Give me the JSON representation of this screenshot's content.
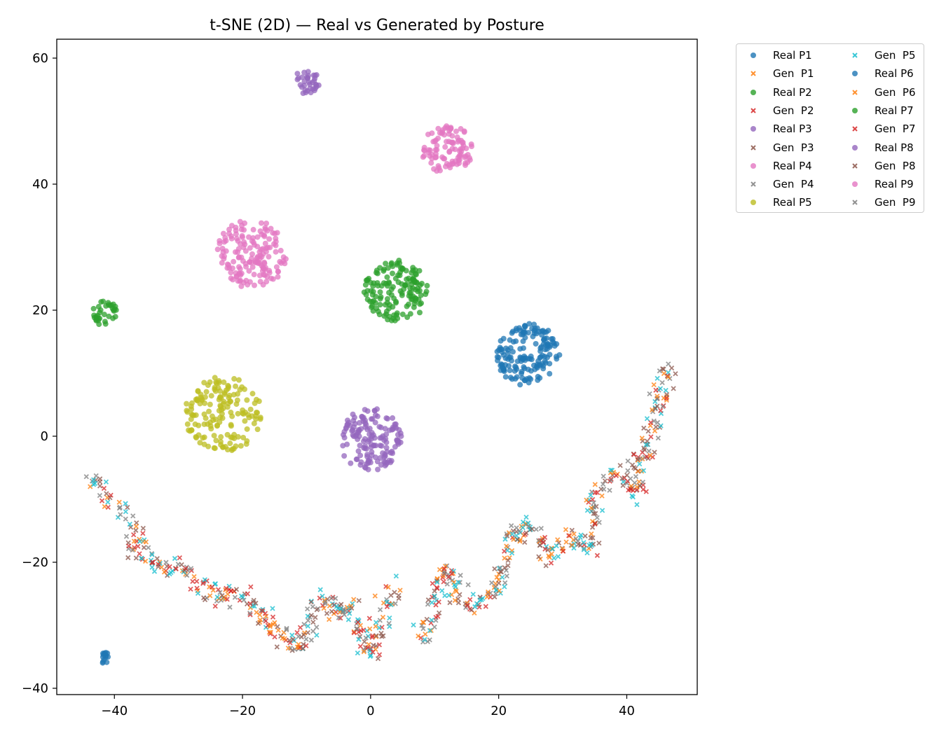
{
  "chart_data": {
    "type": "scatter",
    "title": "t-SNE (2D) — Real vs Generated by Posture",
    "xlabel": "",
    "ylabel": "",
    "xlim": [
      -49,
      51
    ],
    "ylim": [
      -41,
      63
    ],
    "x_ticks": [
      -40,
      -20,
      0,
      20,
      40
    ],
    "y_ticks": [
      -40,
      -20,
      0,
      20,
      40,
      60
    ],
    "x_tick_labels": [
      "−40",
      "−20",
      "0",
      "20",
      "40"
    ],
    "y_tick_labels": [
      "−40",
      "−20",
      "0",
      "20",
      "40",
      "60"
    ],
    "grid": false,
    "legend_position": "outside-top-right",
    "legend_columns": 2,
    "legend": [
      {
        "label": "Real P1",
        "marker": "circle",
        "color": "#1f77b4"
      },
      {
        "label": "Gen  P1",
        "marker": "x",
        "color": "#ff7f0e"
      },
      {
        "label": "Real P2",
        "marker": "circle",
        "color": "#2ca02c"
      },
      {
        "label": "Gen  P2",
        "marker": "x",
        "color": "#d62728"
      },
      {
        "label": "Real P3",
        "marker": "circle",
        "color": "#9467bd"
      },
      {
        "label": "Gen  P3",
        "marker": "x",
        "color": "#8c564b"
      },
      {
        "label": "Real P4",
        "marker": "circle",
        "color": "#e377c2"
      },
      {
        "label": "Gen  P4",
        "marker": "x",
        "color": "#7f7f7f"
      },
      {
        "label": "Real P5",
        "marker": "circle",
        "color": "#bcbd22"
      },
      {
        "label": "Gen  P5",
        "marker": "x",
        "color": "#17becf"
      },
      {
        "label": "Real P6",
        "marker": "circle",
        "color": "#1f77b4"
      },
      {
        "label": "Gen  P6",
        "marker": "x",
        "color": "#ff7f0e"
      },
      {
        "label": "Real P7",
        "marker": "circle",
        "color": "#2ca02c"
      },
      {
        "label": "Gen  P7",
        "marker": "x",
        "color": "#d62728"
      },
      {
        "label": "Real P8",
        "marker": "circle",
        "color": "#9467bd"
      },
      {
        "label": "Gen  P8",
        "marker": "x",
        "color": "#8c564b"
      },
      {
        "label": "Real P9",
        "marker": "circle",
        "color": "#e377c2"
      },
      {
        "label": "Gen  P9",
        "marker": "x",
        "color": "#7f7f7f"
      }
    ],
    "real_clusters": [
      {
        "series": "Real P1",
        "color": "#1f77b4",
        "center": [
          24.5,
          13
        ],
        "radius": 5,
        "count": 160
      },
      {
        "series": "Real P6",
        "color": "#1f77b4",
        "center": [
          -41.5,
          -35.2
        ],
        "radius": 0.9,
        "count": 14
      },
      {
        "series": "Real P2",
        "color": "#2ca02c",
        "center": [
          4,
          23
        ],
        "radius": 5,
        "count": 150
      },
      {
        "series": "Real P7",
        "color": "#2ca02c",
        "center": [
          -41.5,
          19.5
        ],
        "radius": 2,
        "count": 35
      },
      {
        "series": "Real P3",
        "color": "#9467bd",
        "center": [
          0,
          -0.5
        ],
        "radius": 5,
        "count": 150
      },
      {
        "series": "Real P8",
        "color": "#9467bd",
        "center": [
          -10,
          56.3
        ],
        "radius": 2,
        "count": 35
      },
      {
        "series": "Real P4",
        "color": "#e377c2",
        "center": [
          -18.5,
          29
        ],
        "radius": 5.5,
        "count": 160
      },
      {
        "series": "Real P9",
        "color": "#e377c2",
        "center": [
          12,
          45.5
        ],
        "radius": 4,
        "count": 100
      },
      {
        "series": "Real P5",
        "color": "#bcbd22",
        "center": [
          -23,
          3.5
        ],
        "radius": 6,
        "count": 160
      }
    ],
    "generated_path": [
      [
        -44,
        -6
      ],
      [
        -42,
        -8
      ],
      [
        -40,
        -11
      ],
      [
        -38.5,
        -12
      ],
      [
        -37,
        -14
      ],
      [
        -36,
        -16
      ],
      [
        -37,
        -18
      ],
      [
        -35,
        -19
      ],
      [
        -33,
        -20
      ],
      [
        -31.5,
        -22
      ],
      [
        -30,
        -20
      ],
      [
        -28,
        -22
      ],
      [
        -26,
        -24
      ],
      [
        -24,
        -26
      ],
      [
        -22,
        -24
      ],
      [
        -20,
        -26
      ],
      [
        -18,
        -27
      ],
      [
        -16,
        -29
      ],
      [
        -15,
        -31
      ],
      [
        -13,
        -33
      ],
      [
        -11,
        -34
      ],
      [
        -10,
        -31
      ],
      [
        -9,
        -28
      ],
      [
        -7,
        -26
      ],
      [
        -5,
        -28
      ],
      [
        -3,
        -27
      ],
      [
        -2,
        -30
      ],
      [
        -1,
        -33
      ],
      [
        0,
        -35
      ],
      [
        1,
        -31
      ],
      [
        2,
        -28
      ],
      [
        3,
        -25
      ],
      [
        4,
        -24
      ],
      [
        8,
        -32
      ],
      [
        10,
        -28
      ],
      [
        11,
        -23
      ],
      [
        12,
        -21
      ],
      [
        14,
        -26
      ],
      [
        16,
        -27
      ],
      [
        18,
        -25
      ],
      [
        20,
        -24
      ],
      [
        21,
        -20
      ],
      [
        22,
        -16
      ],
      [
        24,
        -14
      ],
      [
        26,
        -16
      ],
      [
        28,
        -19
      ],
      [
        30,
        -18
      ],
      [
        32,
        -16
      ],
      [
        34,
        -18
      ],
      [
        35,
        -12
      ],
      [
        34,
        -10
      ],
      [
        36,
        -8
      ],
      [
        38,
        -6
      ],
      [
        40,
        -7
      ],
      [
        42,
        -9
      ],
      [
        41,
        -5
      ],
      [
        43,
        -3
      ],
      [
        44,
        2
      ],
      [
        45.5,
        7
      ],
      [
        47,
        11
      ]
    ],
    "generated_count": 760,
    "generated_colors": [
      "#ff7f0e",
      "#d62728",
      "#8c564b",
      "#7f7f7f",
      "#17becf"
    ]
  }
}
